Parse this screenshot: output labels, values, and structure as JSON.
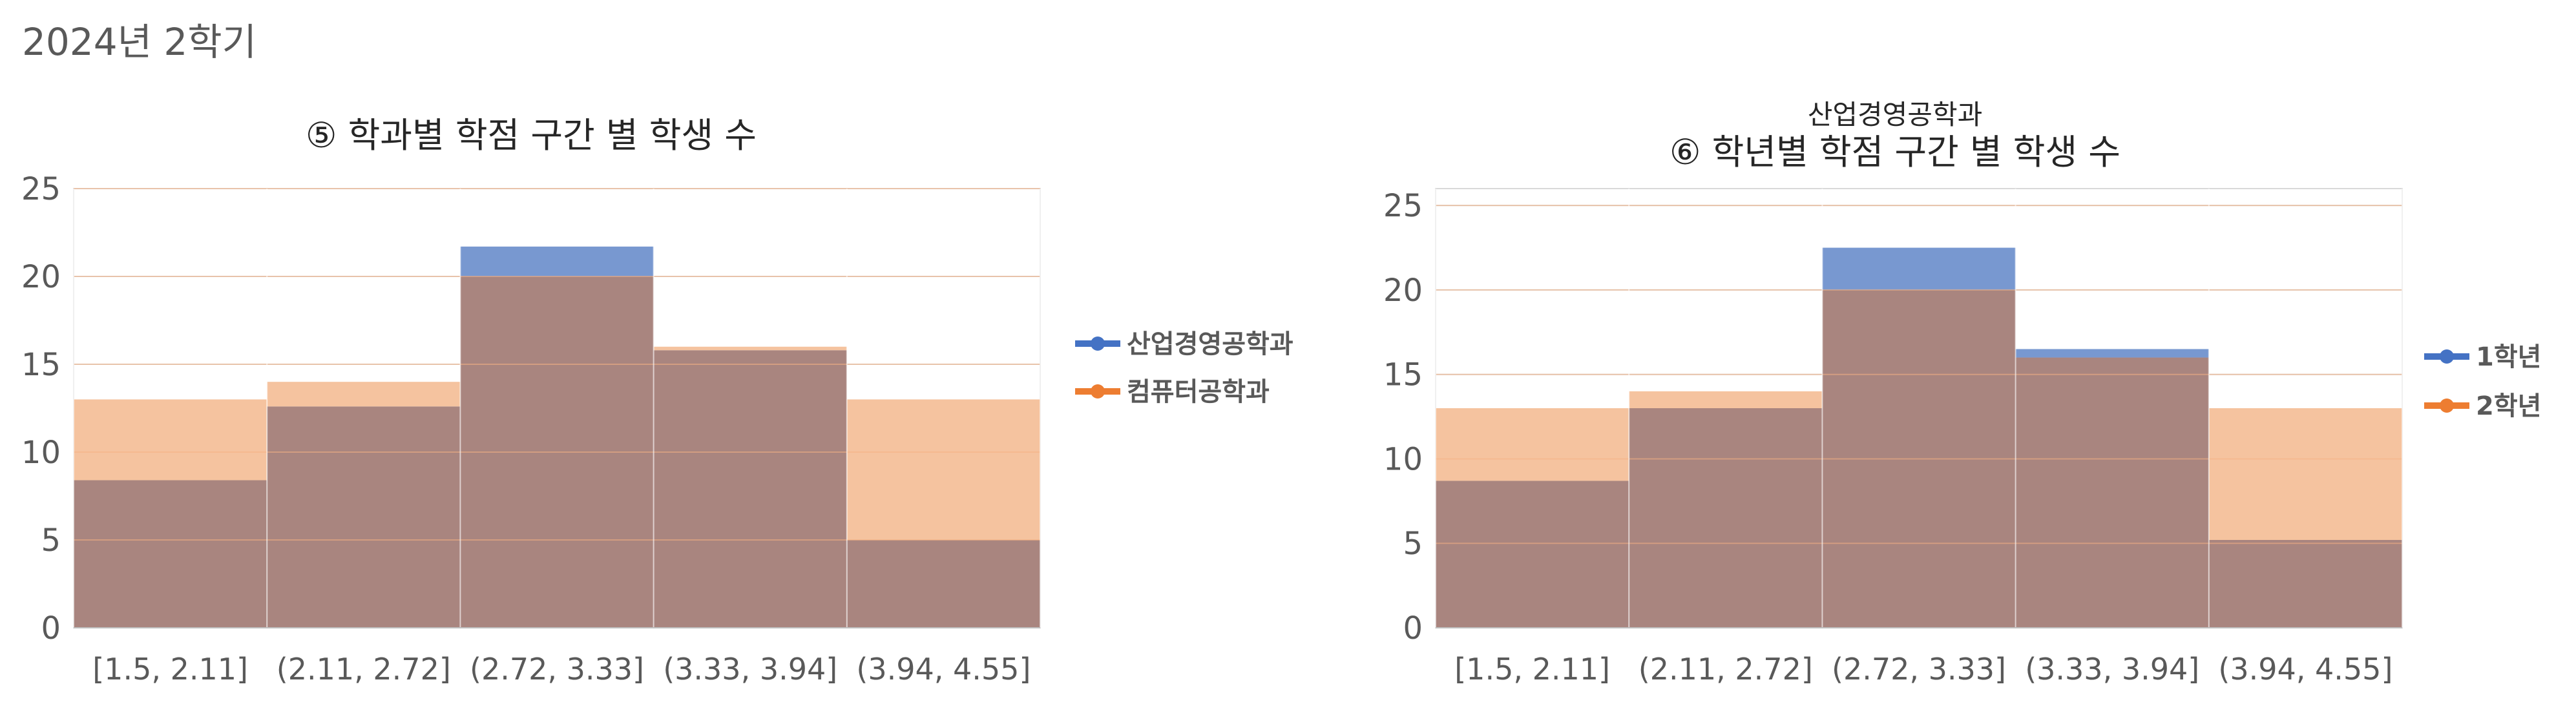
{
  "page": {
    "header": "2024년 2학기"
  },
  "chart_data": [
    {
      "type": "bar",
      "subtitle": "",
      "title": "⑤ 학과별 학점 구간 별 학생 수",
      "categories": [
        "[1.5, 2.11]",
        "(2.11, 2.72]",
        "(2.72, 3.33]",
        "(3.33, 3.94]",
        "(3.94, 4.55]"
      ],
      "series": [
        {
          "name": "산업경영공학과",
          "values": [
            8.4,
            12.6,
            21.7,
            15.8,
            5.0
          ],
          "color": "#4472C4"
        },
        {
          "name": "컴퓨터공학과",
          "values": [
            13.0,
            14.0,
            20.0,
            16.0,
            13.0
          ],
          "color": "#ED7D31"
        }
      ],
      "overlap_color": "#A9857F",
      "blue_fill": "#7898D0",
      "orange_fill": "#F5C39F",
      "ylim": [
        0,
        25
      ],
      "yticks": [
        0,
        5,
        10,
        15,
        20,
        25
      ],
      "grid": true,
      "legend": "right"
    },
    {
      "type": "bar",
      "subtitle": "산업경영공학과",
      "title": "⑥ 학년별 학점 구간 별 학생 수",
      "categories": [
        "[1.5, 2.11]",
        "(2.11, 2.72]",
        "(2.72, 3.33]",
        "(3.33, 3.94]",
        "(3.94, 4.55]"
      ],
      "series": [
        {
          "name": "1학년",
          "values": [
            8.7,
            13.0,
            22.5,
            16.5,
            5.2
          ],
          "color": "#4472C4"
        },
        {
          "name": "2학년",
          "values": [
            13.0,
            14.0,
            20.0,
            16.0,
            13.0
          ],
          "color": "#ED7D31"
        }
      ],
      "overlap_color": "#A9857F",
      "blue_fill": "#7898D0",
      "orange_fill": "#F5C39F",
      "ylim": [
        0,
        26
      ],
      "yticks": [
        0,
        5,
        10,
        15,
        20,
        25
      ],
      "grid": true,
      "legend": "right"
    }
  ]
}
